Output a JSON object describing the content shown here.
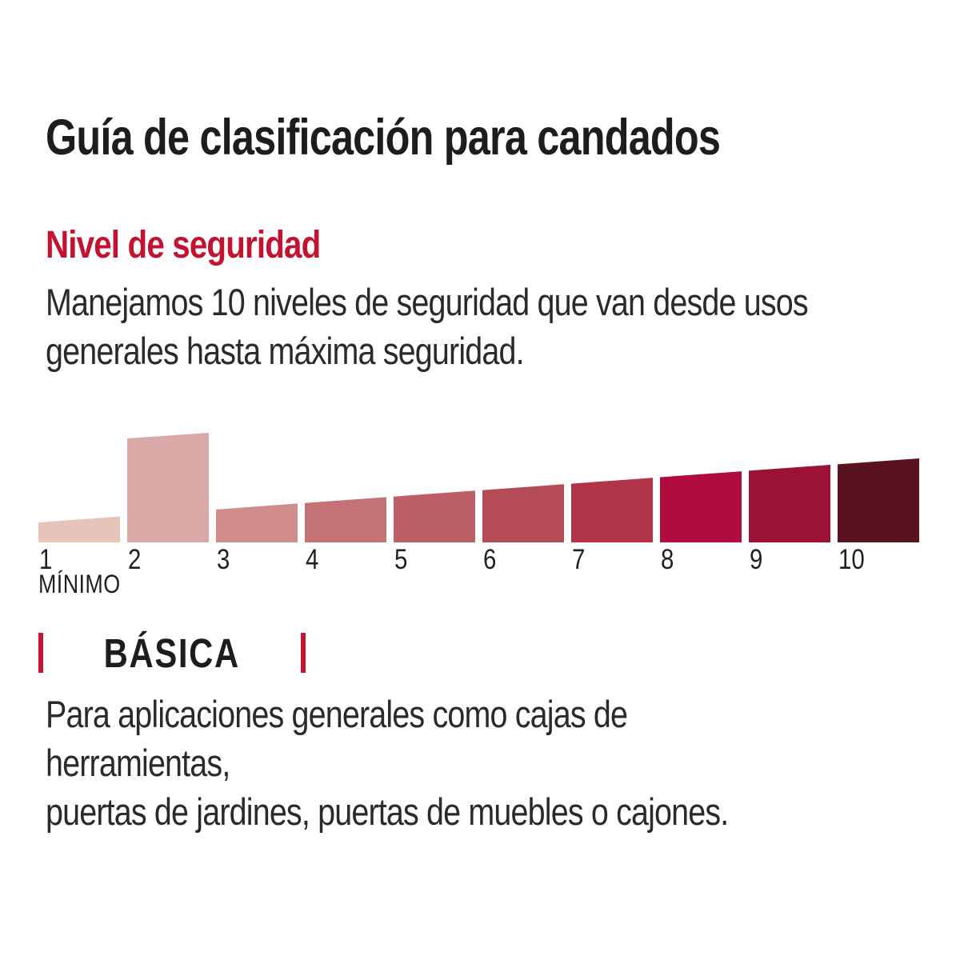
{
  "page": {
    "title": "Guía de clasificación para candados",
    "section_heading": "Nivel de seguridad",
    "intro_text": "Manejamos 10 niveles de seguridad que van desde usos\ngenerales hasta máxima seguridad.",
    "min_label": "MÍNIMO",
    "category_label": "BÁSICA",
    "category_description": "Para aplicaciones generales como cajas de herramientas,\npuertas de jardines, puertas de muebles o cajones."
  },
  "colors": {
    "accent_red": "#C41230",
    "title_text": "#1D1D1B",
    "body_text": "#2B2A29",
    "background": "#FFFFFF"
  },
  "chart_data": {
    "type": "bar",
    "title": "Nivel de seguridad",
    "categories": [
      "1",
      "2",
      "3",
      "4",
      "5",
      "6",
      "7",
      "8",
      "9",
      "10"
    ],
    "values": [
      1,
      2,
      3,
      4,
      5,
      6,
      7,
      8,
      9,
      10
    ],
    "highlighted_level": "2",
    "highlight_meaning": "BÁSICA",
    "min_label": "MÍNIMO",
    "bar_colors": [
      "#E7C4BA",
      "#D9A9A7",
      "#CF8C8A",
      "#C57277",
      "#BD5F66",
      "#B54B57",
      "#B23448",
      "#B00D3E",
      "#9B1236",
      "#591320"
    ],
    "xlabel": "",
    "ylabel": "",
    "grid": false,
    "legend_position": "none",
    "shape": "ascending wedge segments 1-10, level 2 drawn tall (selected)"
  }
}
